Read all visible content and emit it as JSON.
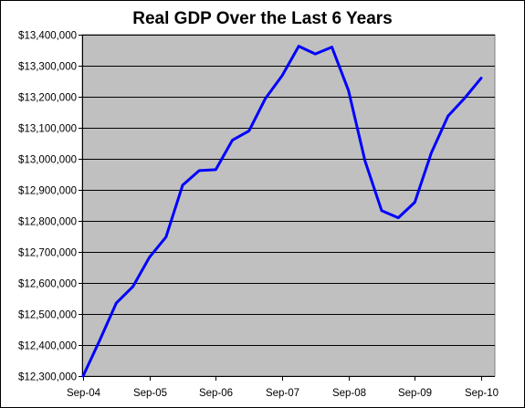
{
  "chart_data": {
    "type": "line",
    "title": "Real GDP Over the Last 6 Years",
    "xlabel": "",
    "ylabel": "",
    "ylim": [
      12300000,
      13400000
    ],
    "y_ticks": [
      12300000,
      12400000,
      12500000,
      12600000,
      12700000,
      12800000,
      12900000,
      13000000,
      13100000,
      13200000,
      13300000,
      13400000
    ],
    "y_tick_labels": [
      "$12,300,000",
      "$12,400,000",
      "$12,500,000",
      "$12,600,000",
      "$12,700,000",
      "$12,800,000",
      "$12,900,000",
      "$13,000,000",
      "$13,100,000",
      "$13,200,000",
      "$13,300,000",
      "$13,400,000"
    ],
    "x_tick_labels": [
      "Sep-04",
      "Sep-05",
      "Sep-06",
      "Sep-07",
      "Sep-08",
      "Sep-09",
      "Sep-10"
    ],
    "grid": true,
    "legend": "none",
    "plot_background": "#c0c0c0",
    "series_color": "#0000ff",
    "series": [
      {
        "x": [
          "Sep-04",
          "Dec-04",
          "Mar-05",
          "Jun-05",
          "Sep-05",
          "Dec-05",
          "Mar-06",
          "Jun-06",
          "Sep-06",
          "Dec-06",
          "Mar-07",
          "Jun-07",
          "Sep-07",
          "Dec-07",
          "Mar-08",
          "Jun-08",
          "Sep-08",
          "Dec-08",
          "Mar-09",
          "Jun-09",
          "Sep-09",
          "Dec-09",
          "Mar-10",
          "Jun-10",
          "Sep-10"
        ],
        "values": [
          12300000,
          12415000,
          12535000,
          12588000,
          12683000,
          12748000,
          12915000,
          12962000,
          12965000,
          13060000,
          13090000,
          13195000,
          13268000,
          13363000,
          13338000,
          13360000,
          13220000,
          12993000,
          12833000,
          12810000,
          12860000,
          13020000,
          13138000,
          13195000,
          13260000
        ]
      }
    ]
  }
}
